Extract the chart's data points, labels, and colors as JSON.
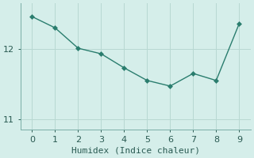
{
  "x": [
    0,
    1,
    2,
    3,
    4,
    5,
    6,
    7,
    8,
    9
  ],
  "y": [
    12.46,
    12.3,
    12.01,
    11.93,
    11.73,
    11.55,
    11.47,
    11.65,
    11.55,
    12.36
  ],
  "line_color": "#2a7d6e",
  "marker": "D",
  "marker_size": 3.0,
  "bg_color": "#d5eeea",
  "grid_color": "#b8d8d2",
  "xlabel": "Humidex (Indice chaleur)",
  "xlim": [
    -0.5,
    9.5
  ],
  "ylim": [
    10.85,
    12.65
  ],
  "yticks": [
    11,
    12
  ],
  "xticks": [
    0,
    1,
    2,
    3,
    4,
    5,
    6,
    7,
    8,
    9
  ],
  "xlabel_fontsize": 8,
  "tick_fontsize": 8,
  "linewidth": 1.0,
  "spine_color": "#7aada6"
}
